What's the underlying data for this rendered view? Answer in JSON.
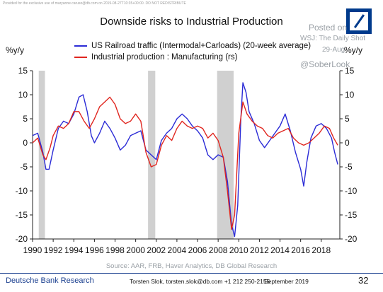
{
  "header": {
    "disclaimer": "Provided for the exclusive use of maryanne.caruso@db.com on 2019-08-27T10:35+00:00. DO NOT REDISTRIBUTE",
    "title": "Downside risks to Industrial Production"
  },
  "watermark": {
    "posted_on": "Posted on",
    "source_site": "WSJ: The Daily Shot",
    "date": "29-Aug",
    "handle": "@SoberLook"
  },
  "logo": {
    "name": "deutsche-bank-logo",
    "color": "#003a8c"
  },
  "footer": {
    "org": "Deutsche Bank Research",
    "author": "Torsten Slok, torsten.slok@db.com  +1 212 250-2155",
    "date": "September 2019",
    "page": "32",
    "source": "Source: AAR, FRB, Haver Analytics, DB Global Research"
  },
  "chart_data": {
    "type": "line",
    "y_left_label": "%y/y",
    "y_right_label": "%y/y",
    "ylim": [
      -20,
      15
    ],
    "yticks": [
      15,
      10,
      5,
      0,
      -5,
      -10,
      -15,
      -20
    ],
    "xlim": [
      1990,
      2019.8
    ],
    "xticks": [
      1990,
      1992,
      1994,
      1996,
      1998,
      2000,
      2002,
      2004,
      2006,
      2008,
      2010,
      2012,
      2014,
      2016,
      2018
    ],
    "recessions": [
      [
        1990.6,
        1991.2
      ],
      [
        2001.2,
        2001.9
      ],
      [
        2007.9,
        2009.5
      ]
    ],
    "grid": false,
    "legend_position": "top",
    "series": [
      {
        "name": "US Railroad traffic (Intermodal+Carloads) (20-week average)",
        "color": "#2b2bd6",
        "axis": "left",
        "points": [
          [
            1990.0,
            1.5
          ],
          [
            1990.5,
            2.0
          ],
          [
            1991.0,
            -2.0
          ],
          [
            1991.3,
            -5.5
          ],
          [
            1991.6,
            -5.5
          ],
          [
            1992.0,
            -1.5
          ],
          [
            1992.5,
            3.0
          ],
          [
            1993.0,
            4.5
          ],
          [
            1993.5,
            4.0
          ],
          [
            1994.0,
            6.0
          ],
          [
            1994.5,
            9.5
          ],
          [
            1994.9,
            10.0
          ],
          [
            1995.3,
            6.5
          ],
          [
            1995.7,
            1.5
          ],
          [
            1996.0,
            0.0
          ],
          [
            1996.5,
            2.0
          ],
          [
            1997.0,
            4.5
          ],
          [
            1997.5,
            3.0
          ],
          [
            1998.0,
            1.0
          ],
          [
            1998.5,
            -1.5
          ],
          [
            1999.0,
            -0.5
          ],
          [
            1999.5,
            1.5
          ],
          [
            2000.0,
            2.0
          ],
          [
            2000.5,
            2.5
          ],
          [
            2001.0,
            -1.5
          ],
          [
            2001.5,
            -2.5
          ],
          [
            2002.0,
            -3.5
          ],
          [
            2002.5,
            0.5
          ],
          [
            2003.0,
            2.0
          ],
          [
            2003.5,
            3.0
          ],
          [
            2004.0,
            5.0
          ],
          [
            2004.5,
            6.0
          ],
          [
            2005.0,
            5.0
          ],
          [
            2005.5,
            3.5
          ],
          [
            2006.0,
            2.5
          ],
          [
            2006.5,
            1.0
          ],
          [
            2007.0,
            -2.5
          ],
          [
            2007.5,
            -3.5
          ],
          [
            2008.0,
            -2.5
          ],
          [
            2008.5,
            -3.0
          ],
          [
            2008.9,
            -8.0
          ],
          [
            2009.3,
            -17.0
          ],
          [
            2009.6,
            -19.5
          ],
          [
            2009.9,
            -13.0
          ],
          [
            2010.2,
            5.0
          ],
          [
            2010.4,
            12.5
          ],
          [
            2010.7,
            10.5
          ],
          [
            2011.0,
            6.5
          ],
          [
            2011.5,
            4.0
          ],
          [
            2012.0,
            0.5
          ],
          [
            2012.5,
            -1.0
          ],
          [
            2013.0,
            0.5
          ],
          [
            2013.5,
            2.0
          ],
          [
            2014.0,
            3.5
          ],
          [
            2014.5,
            6.0
          ],
          [
            2015.0,
            2.5
          ],
          [
            2015.5,
            -2.0
          ],
          [
            2016.0,
            -5.5
          ],
          [
            2016.3,
            -9.0
          ],
          [
            2016.6,
            -4.0
          ],
          [
            2017.0,
            1.0
          ],
          [
            2017.5,
            3.5
          ],
          [
            2018.0,
            4.0
          ],
          [
            2018.5,
            3.0
          ],
          [
            2019.0,
            1.0
          ],
          [
            2019.3,
            -2.0
          ],
          [
            2019.6,
            -4.5
          ]
        ]
      },
      {
        "name": "Industrial production : Manufacturing (rs)",
        "color": "#e0261f",
        "axis": "right",
        "points": [
          [
            1990.0,
            0.0
          ],
          [
            1990.5,
            1.0
          ],
          [
            1991.0,
            -2.5
          ],
          [
            1991.3,
            -3.5
          ],
          [
            1991.7,
            -1.0
          ],
          [
            1992.0,
            1.5
          ],
          [
            1992.5,
            3.5
          ],
          [
            1993.0,
            3.0
          ],
          [
            1993.5,
            4.0
          ],
          [
            1994.0,
            6.5
          ],
          [
            1994.5,
            6.5
          ],
          [
            1995.0,
            4.5
          ],
          [
            1995.5,
            3.0
          ],
          [
            1996.0,
            5.0
          ],
          [
            1996.5,
            7.5
          ],
          [
            1997.0,
            8.5
          ],
          [
            1997.5,
            9.5
          ],
          [
            1998.0,
            8.0
          ],
          [
            1998.5,
            5.0
          ],
          [
            1999.0,
            4.0
          ],
          [
            1999.5,
            4.5
          ],
          [
            2000.0,
            6.0
          ],
          [
            2000.5,
            4.5
          ],
          [
            2001.0,
            -2.0
          ],
          [
            2001.5,
            -5.0
          ],
          [
            2002.0,
            -4.5
          ],
          [
            2002.5,
            -0.5
          ],
          [
            2003.0,
            1.5
          ],
          [
            2003.5,
            0.5
          ],
          [
            2004.0,
            3.0
          ],
          [
            2004.5,
            4.5
          ],
          [
            2005.0,
            3.5
          ],
          [
            2005.5,
            3.0
          ],
          [
            2006.0,
            3.5
          ],
          [
            2006.5,
            3.0
          ],
          [
            2007.0,
            1.0
          ],
          [
            2007.5,
            2.0
          ],
          [
            2008.0,
            0.5
          ],
          [
            2008.5,
            -3.0
          ],
          [
            2008.9,
            -10.0
          ],
          [
            2009.3,
            -18.0
          ],
          [
            2009.6,
            -15.0
          ],
          [
            2010.0,
            2.0
          ],
          [
            2010.4,
            8.5
          ],
          [
            2010.8,
            6.0
          ],
          [
            2011.3,
            4.5
          ],
          [
            2011.8,
            3.5
          ],
          [
            2012.3,
            3.0
          ],
          [
            2012.8,
            1.5
          ],
          [
            2013.3,
            1.0
          ],
          [
            2013.8,
            2.0
          ],
          [
            2014.3,
            2.5
          ],
          [
            2014.8,
            3.0
          ],
          [
            2015.3,
            1.0
          ],
          [
            2015.8,
            0.0
          ],
          [
            2016.3,
            -0.5
          ],
          [
            2016.8,
            0.0
          ],
          [
            2017.3,
            1.0
          ],
          [
            2017.8,
            2.0
          ],
          [
            2018.3,
            3.5
          ],
          [
            2018.8,
            3.0
          ],
          [
            2019.2,
            1.0
          ],
          [
            2019.6,
            -0.5
          ]
        ]
      }
    ]
  }
}
